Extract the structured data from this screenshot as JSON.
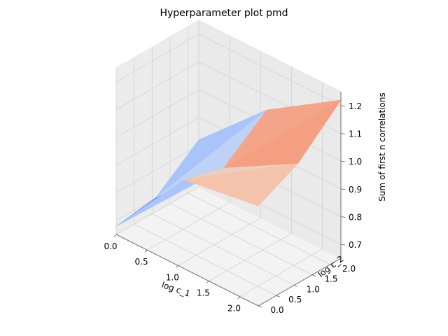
{
  "chart_data": {
    "type": "surface",
    "title": "Hyperparameter plot pmd",
    "xlabel": "log c_1",
    "ylabel": "log c_2",
    "zlabel": "Sum of first n correlations",
    "x_ticks": [
      "0.0",
      "0.5",
      "1.0",
      "1.5",
      "2.0"
    ],
    "y_ticks": [
      "0.0",
      "0.5",
      "1.0",
      "1.5",
      "2.0"
    ],
    "z_ticks": [
      "0.7",
      "0.8",
      "0.9",
      "1.0",
      "1.1",
      "1.2"
    ],
    "xlim": [
      0,
      2.3
    ],
    "ylim": [
      0,
      2.3
    ],
    "zlim": [
      0.65,
      1.25
    ],
    "colormap": "coolwarm",
    "grid": true,
    "x": [
      0.0,
      1.1,
      2.3
    ],
    "y": [
      0.0,
      1.1,
      2.3
    ],
    "z": [
      [
        0.68,
        0.97,
        1.01
      ],
      [
        0.7,
        0.93,
        1.08
      ],
      [
        0.82,
        1.05,
        1.22
      ]
    ]
  }
}
